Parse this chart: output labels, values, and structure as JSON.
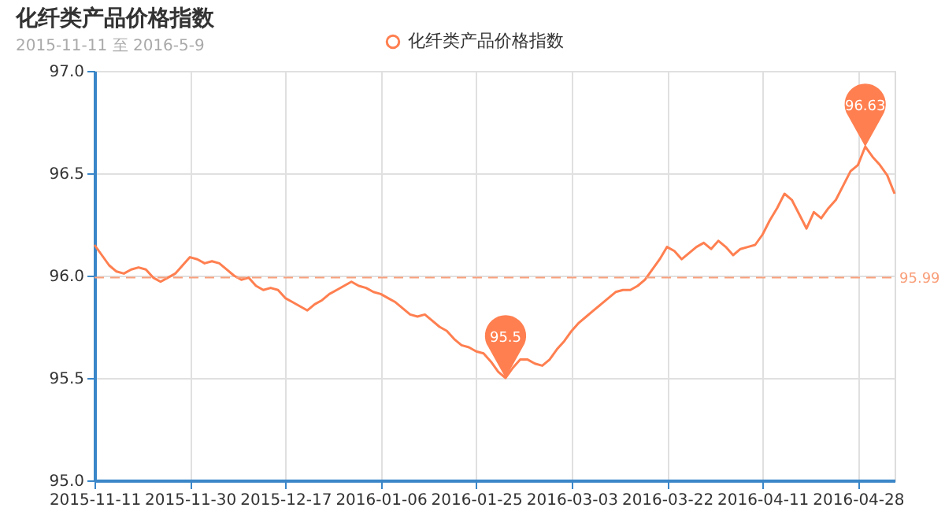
{
  "chart_data": {
    "type": "line",
    "title": "化纤类产品价格指数",
    "subtitle": "2015-11-11 至 2016-5-9",
    "categories": [
      "2015-11-11",
      null,
      null,
      null,
      null,
      null,
      null,
      null,
      null,
      null,
      null,
      null,
      null,
      "2015-11-30",
      null,
      null,
      null,
      null,
      null,
      null,
      null,
      null,
      null,
      null,
      null,
      null,
      "2015-12-17",
      null,
      null,
      null,
      null,
      null,
      null,
      null,
      null,
      null,
      null,
      null,
      null,
      "2016-01-06",
      null,
      null,
      null,
      null,
      null,
      null,
      null,
      null,
      null,
      null,
      null,
      null,
      "2016-01-25",
      null,
      null,
      null,
      null,
      null,
      null,
      null,
      null,
      null,
      null,
      null,
      null,
      "2016-03-03",
      null,
      null,
      null,
      null,
      null,
      null,
      null,
      null,
      null,
      null,
      null,
      null,
      "2016-03-22",
      null,
      null,
      null,
      null,
      null,
      null,
      null,
      null,
      null,
      null,
      null,
      null,
      "2016-04-11",
      null,
      null,
      null,
      null,
      null,
      null,
      null,
      null,
      null,
      null,
      null,
      null,
      "2016-04-28",
      null,
      null,
      null,
      null,
      null
    ],
    "series": [
      {
        "name": "化纤类产品价格指数",
        "color": "#ff7f50",
        "values": [
          96.15,
          96.1,
          96.05,
          96.02,
          96.01,
          96.03,
          96.04,
          96.03,
          95.99,
          95.97,
          95.99,
          96.01,
          96.05,
          96.09,
          96.08,
          96.06,
          96.07,
          96.06,
          96.03,
          96.0,
          95.98,
          95.99,
          95.95,
          95.93,
          95.94,
          95.93,
          95.89,
          95.87,
          95.85,
          95.83,
          95.86,
          95.88,
          95.91,
          95.93,
          95.95,
          95.97,
          95.95,
          95.94,
          95.92,
          95.91,
          95.89,
          95.87,
          95.84,
          95.81,
          95.8,
          95.81,
          95.78,
          95.75,
          95.73,
          95.69,
          95.66,
          95.65,
          95.63,
          95.62,
          95.58,
          95.53,
          95.5,
          95.55,
          95.59,
          95.59,
          95.57,
          95.56,
          95.59,
          95.64,
          95.68,
          95.73,
          95.77,
          95.8,
          95.83,
          95.86,
          95.89,
          95.92,
          95.93,
          95.93,
          95.95,
          95.98,
          96.03,
          96.08,
          96.14,
          96.12,
          96.08,
          96.11,
          96.14,
          96.16,
          96.13,
          96.17,
          96.14,
          96.1,
          96.13,
          96.14,
          96.15,
          96.2,
          96.27,
          96.33,
          96.4,
          96.37,
          96.3,
          96.23,
          96.31,
          96.28,
          96.33,
          96.37,
          96.44,
          96.51,
          96.54,
          96.63,
          96.58,
          96.54,
          96.49,
          96.4
        ]
      }
    ],
    "ylim": [
      95.0,
      97.0
    ],
    "yticks": [
      {
        "value": 95.0,
        "label": "95.0"
      },
      95.5,
      {
        "value": 96.0,
        "label": "96.0"
      },
      96.5,
      {
        "value": 97.0,
        "label": "97.0"
      }
    ],
    "annotations": [
      {
        "text": "96.63",
        "y": 96.63
      },
      {
        "text": "95.5",
        "y": 95.5
      }
    ],
    "ref_lines": [
      {
        "axis": "y",
        "value": 95.99,
        "label": "95.99",
        "color": "#f9a07c",
        "line_style": "dashed"
      }
    ],
    "grid": true,
    "legend": "top"
  }
}
